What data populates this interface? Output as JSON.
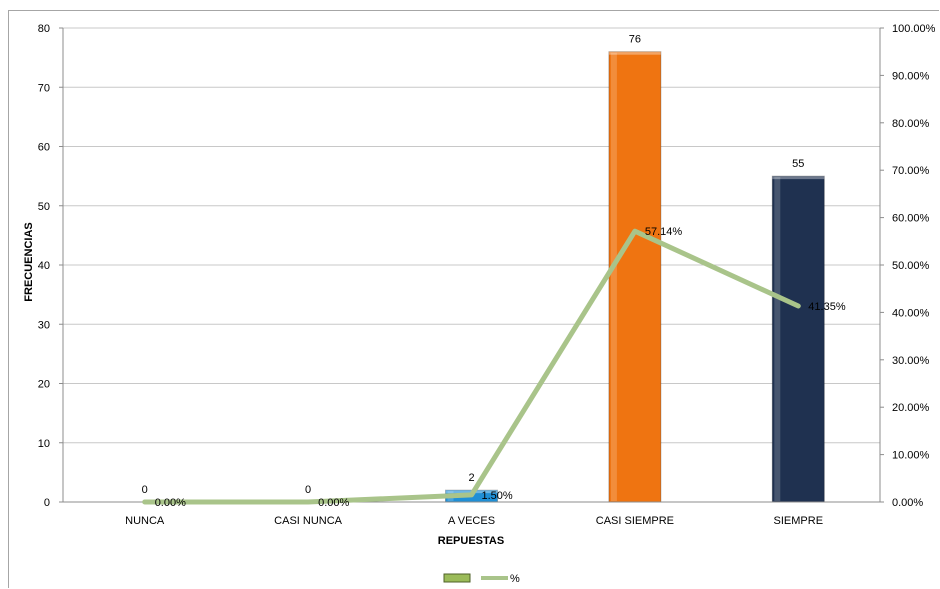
{
  "chart_data": {
    "type": "bar",
    "categories": [
      "NUNCA",
      "CASI NUNCA",
      "A VECES",
      "CASI SIEMPRE",
      "SIEMPRE"
    ],
    "series": [
      {
        "values": [
          0,
          0,
          2,
          76,
          55
        ],
        "axis": "left",
        "data_labels": [
          "0",
          "0",
          "2",
          "76",
          "55"
        ]
      },
      {
        "name": "%",
        "type": "line",
        "axis": "right",
        "values": [
          0.0,
          0.0,
          1.5,
          57.14,
          41.35
        ],
        "data_labels": [
          "0.00%",
          "0.00%",
          "1.50%",
          "57.14%",
          "41.35%"
        ]
      }
    ],
    "bar_colors": [
      "#9bbb59",
      "#9bbb59",
      "#1f8fd6",
      "#ef7411",
      "#1f3150"
    ],
    "line_color": "#a9c48a",
    "xlabel": "REPUESTAS",
    "ylabel": "FRECUENCIAS",
    "ylim": [
      0,
      80
    ],
    "y_ticks": [
      "0",
      "10",
      "20",
      "30",
      "40",
      "50",
      "60",
      "70",
      "80"
    ],
    "y2lim": [
      0,
      100
    ],
    "y2_ticks": [
      "0.00%",
      "10.00%",
      "20.00%",
      "30.00%",
      "40.00%",
      "50.00%",
      "60.00%",
      "70.00%",
      "80.00%",
      "90.00%",
      "100.00%"
    ],
    "grid": true,
    "legend": {
      "position": "bottom",
      "entries": [
        "",
        "%"
      ]
    }
  }
}
